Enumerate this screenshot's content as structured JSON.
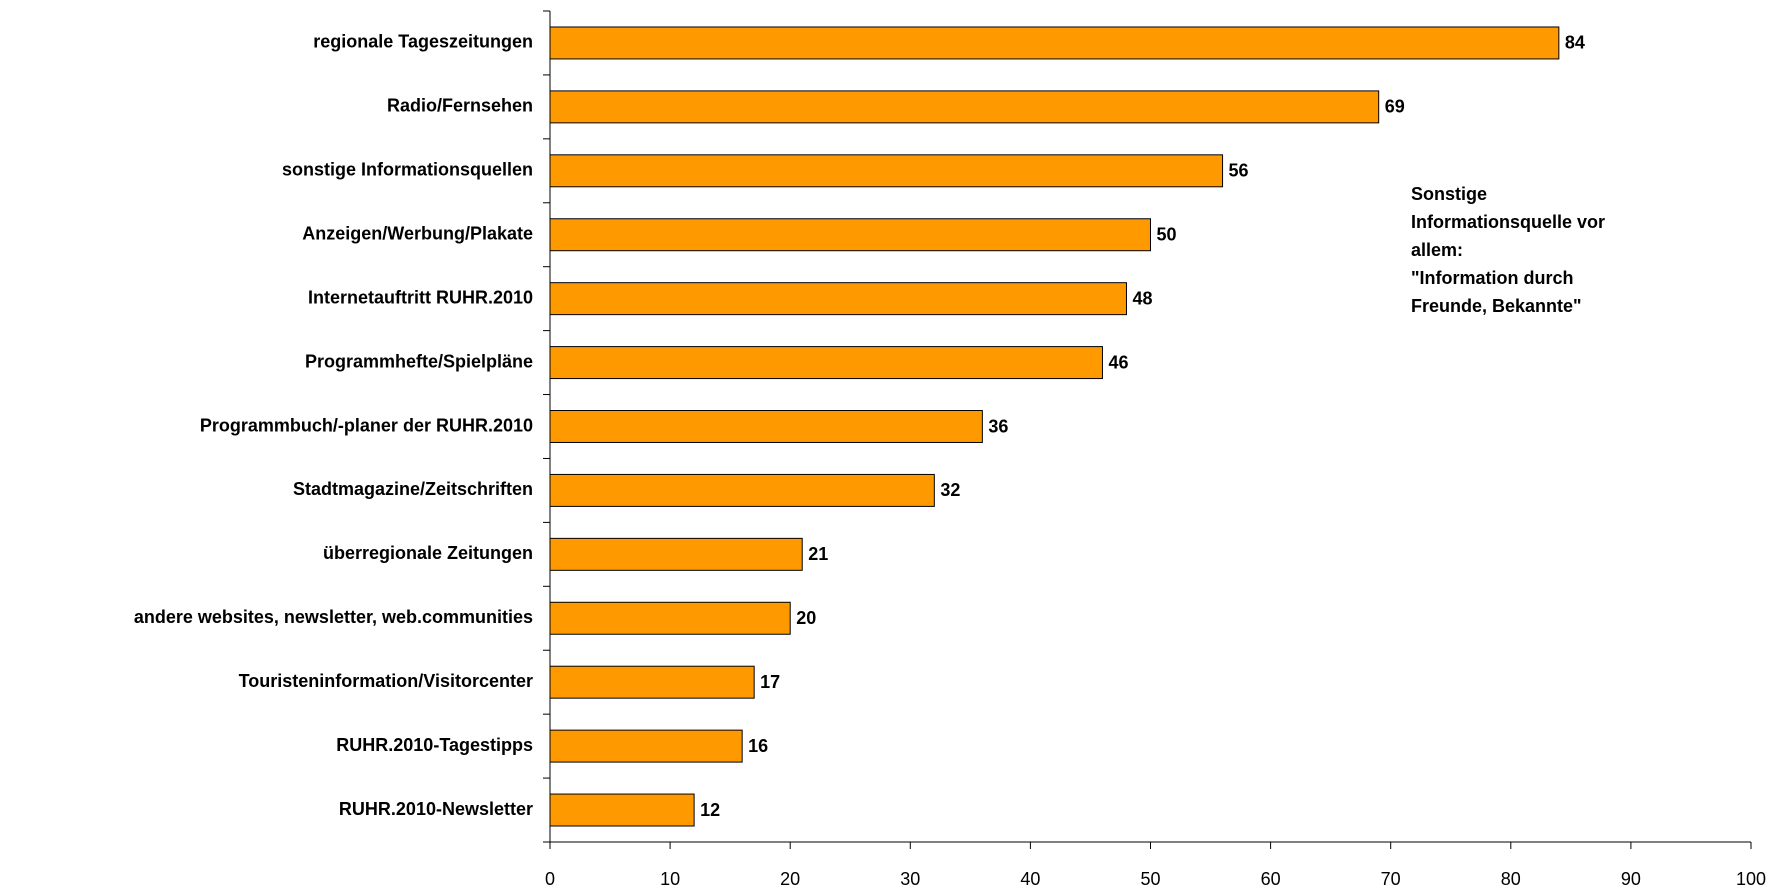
{
  "chart_data": {
    "type": "bar",
    "orientation": "horizontal",
    "categories": [
      "regionale Tageszeitungen",
      "Radio/Fernsehen",
      "sonstige Informationsquellen",
      "Anzeigen/Werbung/Plakate",
      "Internetauftritt RUHR.2010",
      "Programmhefte/Spielpläne",
      "Programmbuch/-planer der RUHR.2010",
      "Stadtmagazine/Zeitschriften",
      "überregionale Zeitungen",
      "andere websites, newsletter, web.communities",
      "Touristeninformation/Visitorcenter",
      "RUHR.2010-Tagestipps",
      "RUHR.2010-Newsletter"
    ],
    "values": [
      84,
      69,
      56,
      50,
      48,
      46,
      36,
      32,
      21,
      20,
      17,
      16,
      12
    ],
    "color": "#ff9900",
    "xlim": [
      0,
      100
    ],
    "xticks": [
      0,
      10,
      20,
      30,
      40,
      50,
      60,
      70,
      80,
      90,
      100
    ],
    "annotation": [
      "Sonstige",
      "Informationsquelle vor",
      "allem:",
      "\"Information durch",
      "Freunde, Bekannte\""
    ]
  }
}
